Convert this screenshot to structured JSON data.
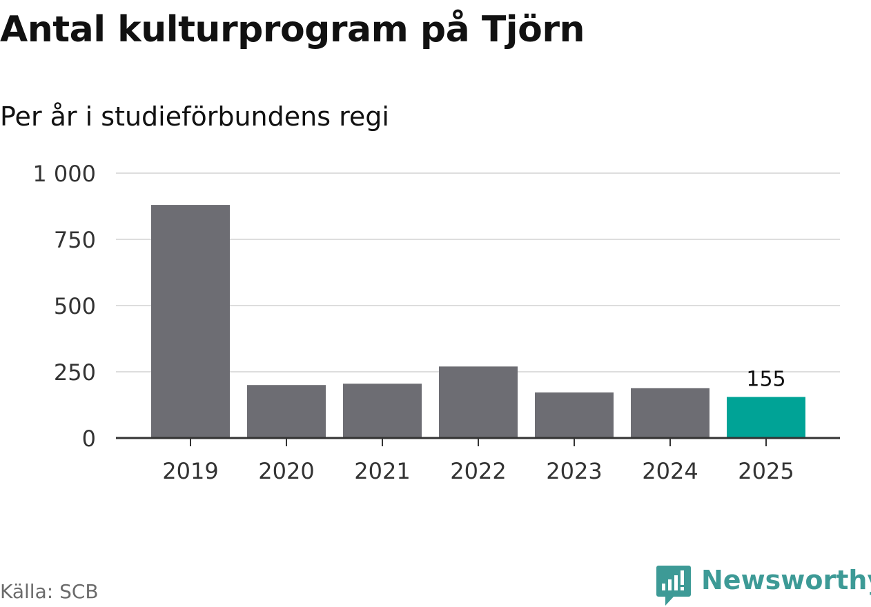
{
  "title": "Antal kulturprogram på Tjörn",
  "subtitle": "Per år i studieförbundens regi",
  "source": "Källa: SCB",
  "brand": {
    "name": "Newsworthy",
    "icon": "newsworthy-logo-icon",
    "color": "#3d9a96"
  },
  "colors": {
    "bar": "#6d6d73",
    "highlight": "#00a396",
    "grid": "#dddddd",
    "axis": "#333333",
    "text": "#333333"
  },
  "chart_data": {
    "type": "bar",
    "title": "Antal kulturprogram på Tjörn",
    "subtitle": "Per år i studieförbundens regi",
    "categories": [
      "2019",
      "2020",
      "2021",
      "2022",
      "2023",
      "2024",
      "2025"
    ],
    "values": [
      880,
      200,
      205,
      270,
      172,
      188,
      155
    ],
    "highlight_index": 6,
    "data_labels": [
      {
        "index": 6,
        "text": "155"
      }
    ],
    "ylim": [
      0,
      1000
    ],
    "yticks": [
      {
        "value": 0,
        "label": "0"
      },
      {
        "value": 250,
        "label": "250"
      },
      {
        "value": 500,
        "label": "500"
      },
      {
        "value": 750,
        "label": "750"
      },
      {
        "value": 1000,
        "label": "1 000"
      }
    ],
    "grid": true,
    "xlabel": "",
    "ylabel": ""
  }
}
